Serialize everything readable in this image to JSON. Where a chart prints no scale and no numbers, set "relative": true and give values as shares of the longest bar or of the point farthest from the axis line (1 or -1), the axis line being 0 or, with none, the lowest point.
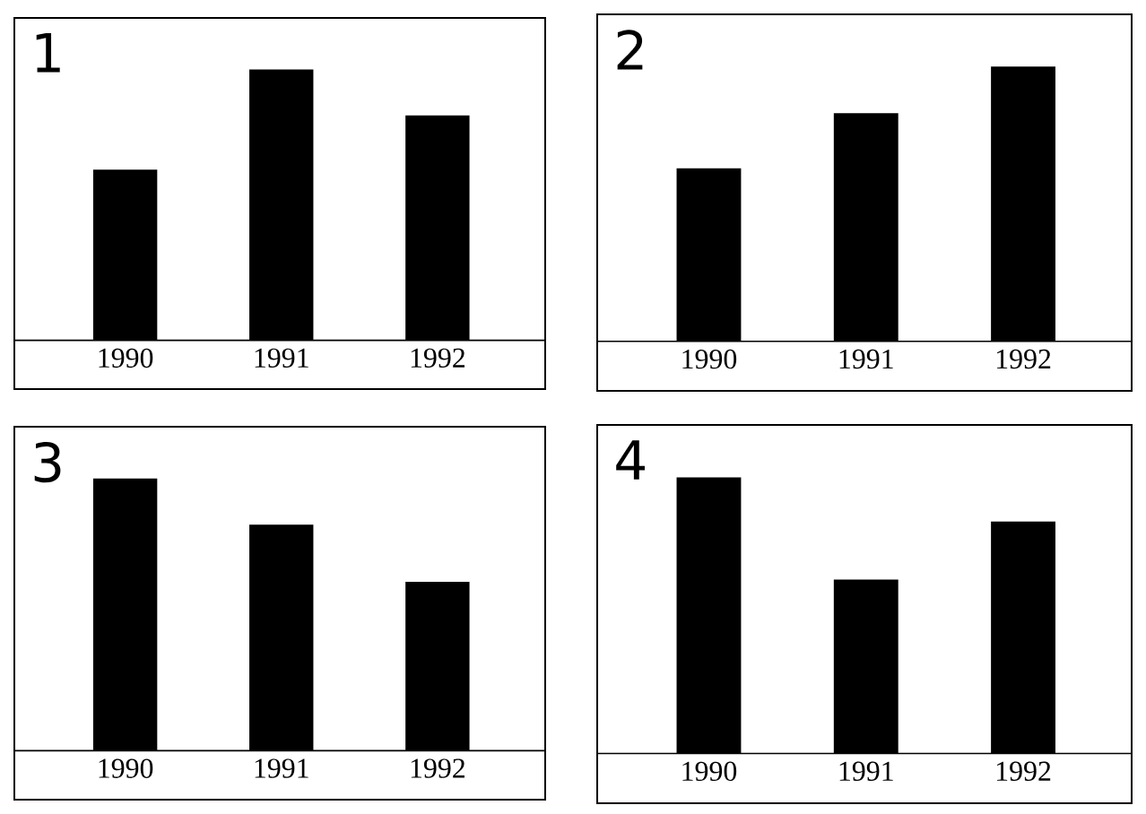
{
  "chart_data": [
    {
      "type": "bar",
      "title": "1",
      "categories": [
        "1990",
        "1991",
        "1992"
      ],
      "values": [
        0.63,
        1,
        0.83
      ],
      "color": "#000000",
      "relative": true
    },
    {
      "type": "bar",
      "title": "2",
      "categories": [
        "1990",
        "1991",
        "1992"
      ],
      "values": [
        0.63,
        0.83,
        1
      ],
      "color": "#000000",
      "relative": true
    },
    {
      "type": "bar",
      "title": "3",
      "categories": [
        "1990",
        "1991",
        "1992"
      ],
      "values": [
        1,
        0.83,
        0.62
      ],
      "color": "#000000",
      "relative": true
    },
    {
      "type": "bar",
      "title": "4",
      "categories": [
        "1990",
        "1991",
        "1992"
      ],
      "values": [
        1,
        0.63,
        0.84
      ],
      "color": "#000000",
      "relative": true
    }
  ]
}
